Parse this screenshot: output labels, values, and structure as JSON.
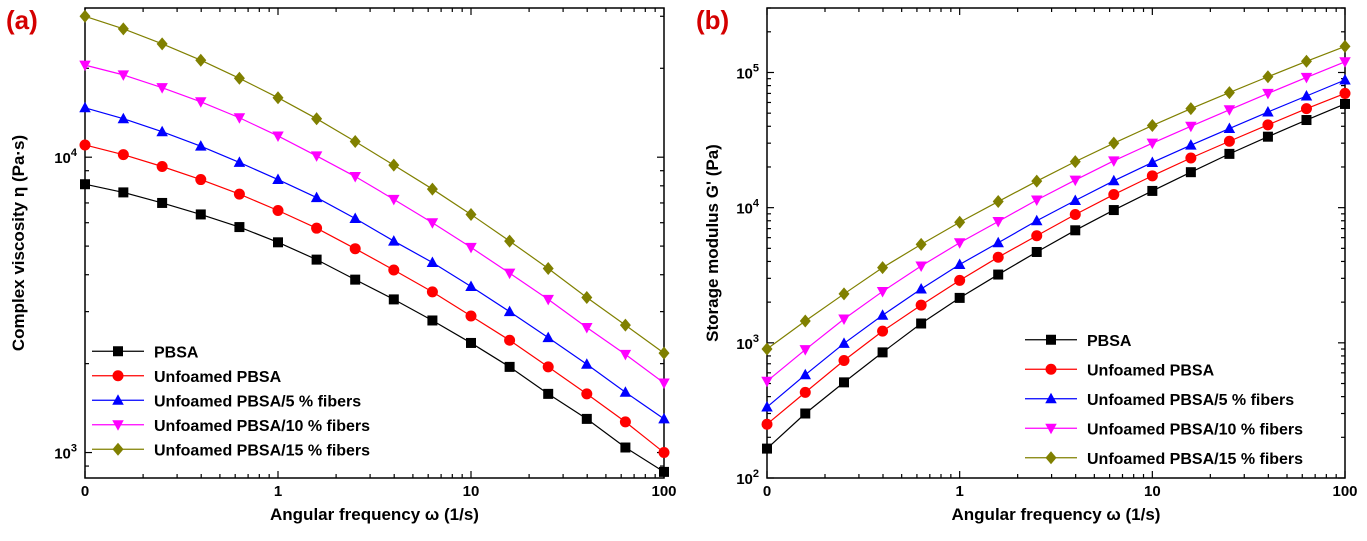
{
  "colors": {
    "panel_label": "#d40000",
    "axis": "#000000"
  },
  "chart_data": [
    {
      "type": "line",
      "panel_label": "(a)",
      "xlabel": "Angular frequency ω (1/s)",
      "ylabel": "Complex viscosity η (Pa·s)",
      "xscale": "log",
      "yscale": "log",
      "xlim": [
        0.1,
        100
      ],
      "ylim": [
        820,
        32000
      ],
      "x_tick_labels": [
        "0",
        "1",
        "10",
        "100"
      ],
      "y_tick_labels": [
        "10^3",
        "10^4"
      ],
      "grid": false,
      "legend_position": "bottom-left",
      "x": [
        0.1,
        0.158,
        0.251,
        0.398,
        0.631,
        1,
        1.585,
        2.512,
        3.981,
        6.31,
        10,
        15.85,
        25.12,
        39.81,
        63.1,
        100
      ],
      "series": [
        {
          "name": "PBSA",
          "color": "#000000",
          "marker": "square",
          "values": [
            8100,
            7600,
            7000,
            6400,
            5800,
            5150,
            4500,
            3850,
            3300,
            2800,
            2350,
            1950,
            1580,
            1300,
            1040,
            860
          ]
        },
        {
          "name": "Unfoamed PBSA",
          "color": "#ff0000",
          "marker": "circle",
          "values": [
            11000,
            10200,
            9300,
            8400,
            7500,
            6600,
            5750,
            4900,
            4150,
            3500,
            2900,
            2400,
            1950,
            1580,
            1270,
            1000
          ]
        },
        {
          "name": "Unfoamed PBSA/5 % fibers",
          "color": "#0000ff",
          "marker": "triangle-up",
          "values": [
            14700,
            13500,
            12200,
            10900,
            9600,
            8400,
            7300,
            6200,
            5200,
            4400,
            3650,
            3000,
            2450,
            1990,
            1600,
            1300
          ]
        },
        {
          "name": "Unfoamed PBSA/10 % fibers",
          "color": "#ff00ff",
          "marker": "triangle-down",
          "values": [
            20500,
            19000,
            17200,
            15400,
            13600,
            11800,
            10100,
            8600,
            7200,
            6000,
            4950,
            4050,
            3300,
            2650,
            2150,
            1720
          ]
        },
        {
          "name": "Unfoamed PBSA/15 % fibers",
          "color": "#808000",
          "marker": "diamond",
          "values": [
            30000,
            27200,
            24200,
            21300,
            18500,
            15900,
            13500,
            11300,
            9400,
            7800,
            6400,
            5200,
            4200,
            3350,
            2700,
            2170
          ]
        }
      ]
    },
    {
      "type": "line",
      "panel_label": "(b)",
      "xlabel": "Angular frequency ω (1/s)",
      "ylabel": "Storage modulus  G' (Pa)",
      "xscale": "log",
      "yscale": "log",
      "xlim": [
        0.1,
        100
      ],
      "ylim": [
        100,
        300000
      ],
      "x_tick_labels": [
        "0",
        "1",
        "10",
        "100"
      ],
      "y_tick_labels": [
        "10^2",
        "10^3",
        "10^4",
        "10^5"
      ],
      "grid": false,
      "legend_position": "bottom-right",
      "x": [
        0.1,
        0.158,
        0.251,
        0.398,
        0.631,
        1,
        1.585,
        2.512,
        3.981,
        6.31,
        10,
        15.85,
        25.12,
        39.81,
        63.1,
        100
      ],
      "series": [
        {
          "name": "PBSA",
          "color": "#000000",
          "marker": "square",
          "values": [
            165,
            300,
            510,
            850,
            1390,
            2150,
            3200,
            4700,
            6800,
            9600,
            13300,
            18300,
            25000,
            33500,
            44500,
            58500
          ]
        },
        {
          "name": "Unfoamed PBSA",
          "color": "#ff0000",
          "marker": "circle",
          "values": [
            250,
            430,
            740,
            1220,
            1900,
            2900,
            4300,
            6200,
            8900,
            12500,
            17200,
            23300,
            31000,
            41000,
            54000,
            70000
          ]
        },
        {
          "name": "Unfoamed PBSA/5 % fibers",
          "color": "#0000ff",
          "marker": "triangle-up",
          "values": [
            335,
            580,
            990,
            1600,
            2500,
            3800,
            5500,
            8000,
            11300,
            15800,
            21600,
            29000,
            38500,
            51000,
            67000,
            88000
          ]
        },
        {
          "name": "Unfoamed PBSA/10 % fibers",
          "color": "#ff00ff",
          "marker": "triangle-down",
          "values": [
            520,
            890,
            1500,
            2400,
            3700,
            5500,
            7900,
            11400,
            16000,
            22200,
            30000,
            40000,
            53000,
            70000,
            92000,
            120000
          ]
        },
        {
          "name": "Unfoamed PBSA/15 % fibers",
          "color": "#808000",
          "marker": "diamond",
          "values": [
            900,
            1450,
            2300,
            3600,
            5350,
            7800,
            11100,
            15700,
            21900,
            30000,
            40500,
            54000,
            71000,
            93000,
            121000,
            156000
          ]
        }
      ]
    }
  ]
}
